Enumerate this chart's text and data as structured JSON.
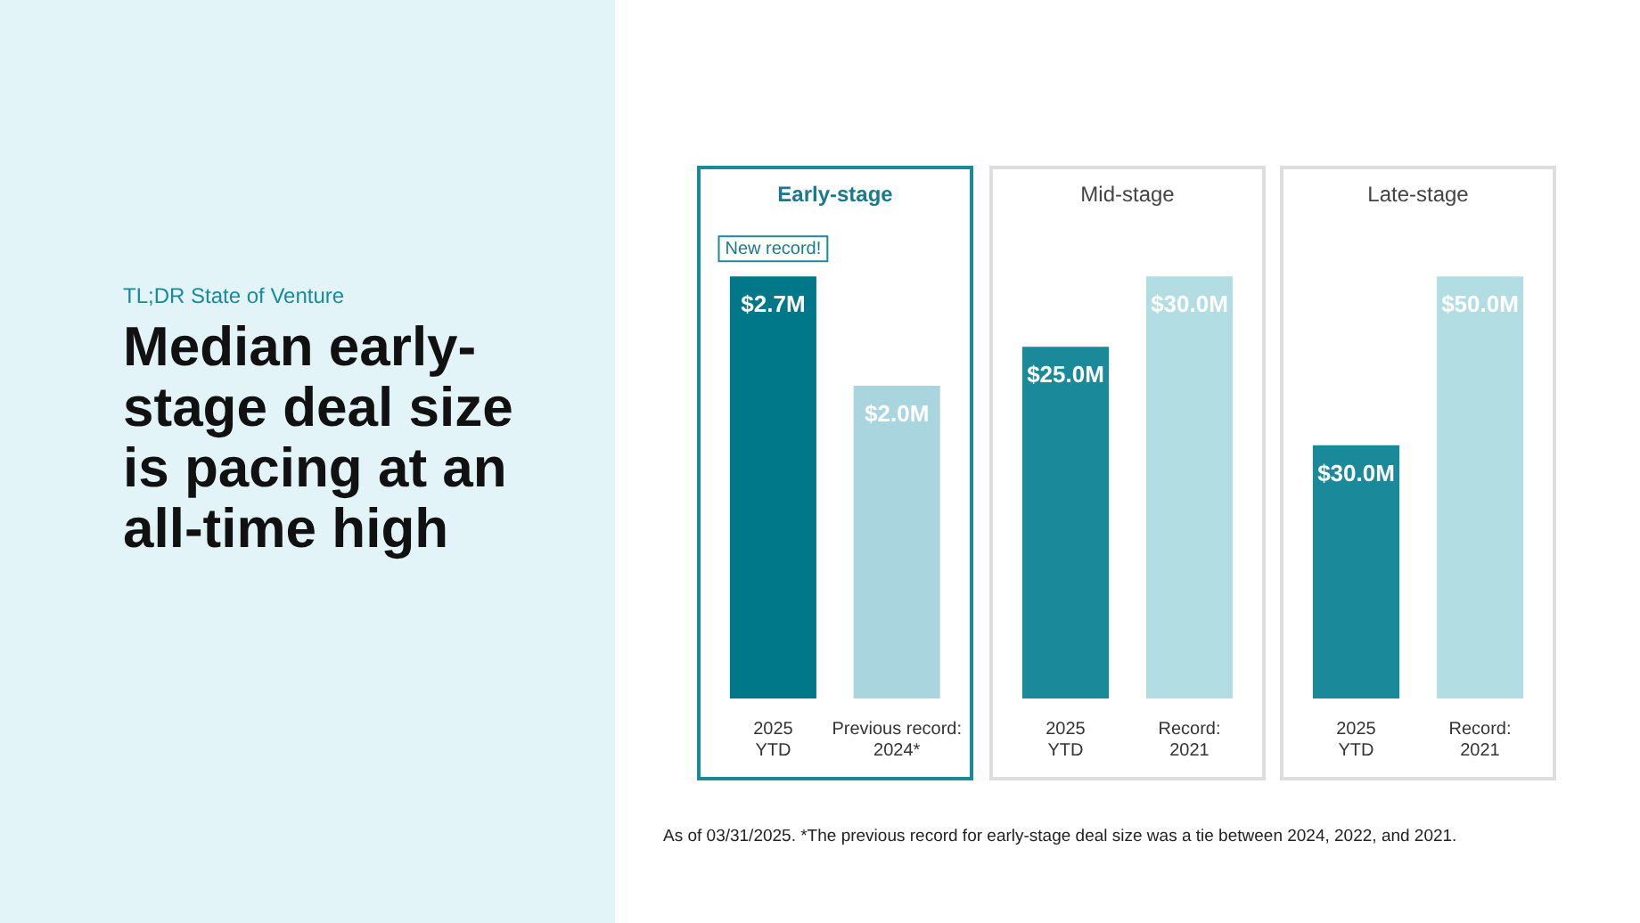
{
  "chart_data": [
    {
      "type": "other",
      "subtitle": "TL;DR State of Venture",
      "title": "Median early-stage deal size is pacing at an all-time high",
      "annotations": [
        "As of 03/31/2025. *The previous record for early-stage deal size was a tie between 2024, 2022, and 2021."
      ]
    },
    {
      "type": "bar",
      "title": "Early-stage",
      "categories": [
        "2025\nYTD",
        "Previous record:\n2024*"
      ],
      "values": [
        2.7,
        2.0
      ],
      "colors": [
        "#00788a",
        "#a9d6de"
      ],
      "value_labels": [
        "$2.7M",
        "$2.0M"
      ],
      "annotations": [
        {
          "text": "New record!",
          "x": "2025\nYTD",
          "y": 2.7
        }
      ]
    },
    {
      "type": "bar",
      "title": "Mid-stage",
      "categories": [
        "2025\nYTD",
        "Record:\n2021"
      ],
      "values": [
        25.0,
        30.0
      ],
      "colors": [
        "#1a8a9a",
        "#b2dde3"
      ],
      "value_labels": [
        "$25.0M",
        "$30.0M"
      ]
    },
    {
      "type": "bar",
      "title": "Late-stage",
      "categories": [
        "2025\nYTD",
        "Record:\n2021"
      ],
      "values": [
        30.0,
        50.0
      ],
      "colors": [
        "#1a8a9a",
        "#b2dde3"
      ],
      "value_labels": [
        "$30.0M",
        "$50.0M"
      ]
    }
  ]
}
